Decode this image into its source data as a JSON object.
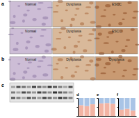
{
  "panels": [
    {
      "letter": "a",
      "rows": [
        [
          "Normal",
          "Dysplasia",
          "ESCC"
        ],
        [
          "Normal",
          "Dysplasia",
          "ESCC"
        ]
      ]
    },
    {
      "letter": "b",
      "rows": [
        [
          "Normal",
          "Dysplasia",
          "Dysplasia"
        ]
      ]
    },
    {
      "letter": "c"
    }
  ],
  "chart_data": [
    {
      "type": "bar",
      "title": "d",
      "stacked": true,
      "tick_labels": false,
      "categories": [
        null,
        null,
        null
      ],
      "ylim": [
        0,
        100
      ],
      "yticks": [
        0,
        50,
        100
      ],
      "series": [
        {
          "color": "#f2b4a4",
          "values": [
            60,
            55,
            65
          ]
        },
        {
          "color": "#a9c4e6",
          "values": [
            40,
            45,
            35
          ]
        }
      ]
    },
    {
      "type": "bar",
      "title": "e",
      "stacked": true,
      "tick_labels": false,
      "categories": [
        null,
        null,
        null
      ],
      "ylim": [
        0,
        100
      ],
      "yticks": [
        0,
        50,
        100
      ],
      "series": [
        {
          "color": "#f2b4a4",
          "values": [
            70,
            72,
            68
          ]
        },
        {
          "color": "#a9c4e6",
          "values": [
            30,
            28,
            32
          ]
        }
      ]
    },
    {
      "type": "bar",
      "title": "f",
      "stacked": true,
      "tick_labels": false,
      "categories": [
        null,
        null,
        null
      ],
      "ylim": [
        0,
        100
      ],
      "yticks": [
        0,
        50,
        100
      ],
      "series": [
        {
          "color": "#f2b4a4",
          "values": [
            35,
            40,
            30
          ]
        },
        {
          "color": "#a9c4e6",
          "values": [
            65,
            60,
            70
          ]
        }
      ]
    }
  ]
}
